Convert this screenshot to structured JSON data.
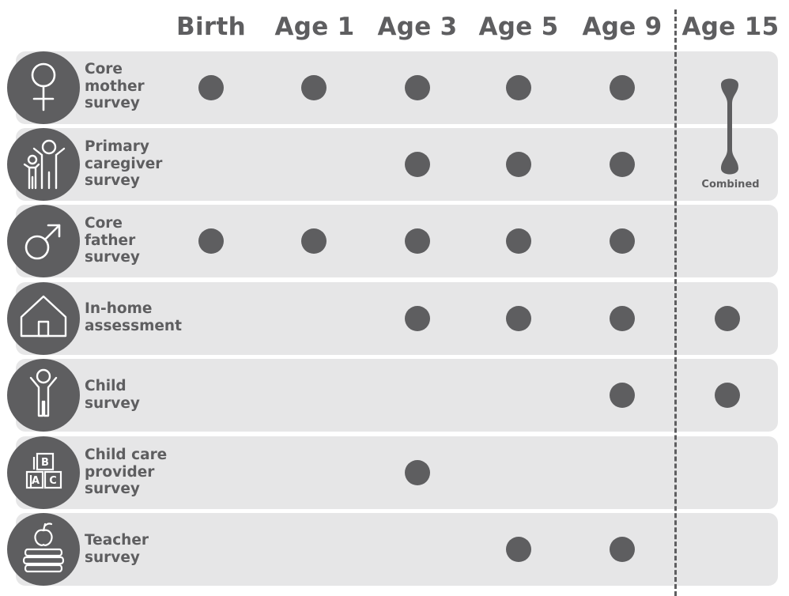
{
  "columns": [
    "Birth",
    "Age 1",
    "Age 3",
    "Age 5",
    "Age 9",
    "Age 15"
  ],
  "rows": [
    {
      "icon": "female-symbol-icon",
      "label_lines": [
        "Core",
        "mother",
        "survey"
      ],
      "ages": [
        "Birth",
        "Age 1",
        "Age 3",
        "Age 5",
        "Age 9",
        "Age 15"
      ]
    },
    {
      "icon": "caregiver-with-child-icon",
      "label_lines": [
        "Primary",
        "caregiver",
        "survey"
      ],
      "ages": [
        "Age 3",
        "Age 5",
        "Age 9",
        "Age 15"
      ]
    },
    {
      "icon": "male-symbol-icon",
      "label_lines": [
        "Core",
        "father",
        "survey"
      ],
      "ages": [
        "Birth",
        "Age 1",
        "Age 3",
        "Age 5",
        "Age 9"
      ]
    },
    {
      "icon": "house-icon",
      "label_lines": [
        "In-home",
        "assessment"
      ],
      "ages": [
        "Age 3",
        "Age 5",
        "Age 9",
        "Age 15"
      ]
    },
    {
      "icon": "child-icon",
      "label_lines": [
        "Child",
        "survey"
      ],
      "ages": [
        "Age 9",
        "Age 15"
      ]
    },
    {
      "icon": "abc-blocks-icon",
      "label_lines": [
        "Child care",
        "provider",
        "survey"
      ],
      "ages": [
        "Age 3"
      ]
    },
    {
      "icon": "apple-on-books-icon",
      "label_lines": [
        "Teacher",
        "survey"
      ],
      "ages": [
        "Age 5",
        "Age 9"
      ]
    }
  ],
  "combined": {
    "label": "Combined",
    "column": "Age 15",
    "rows": [
      0,
      1
    ]
  },
  "icon_text": {
    "blocks": [
      "B",
      "A",
      "C"
    ]
  },
  "colors": {
    "dark": "#5e5e60",
    "row_bg": "#e6e6e7",
    "icon_stroke": "#ffffff"
  }
}
